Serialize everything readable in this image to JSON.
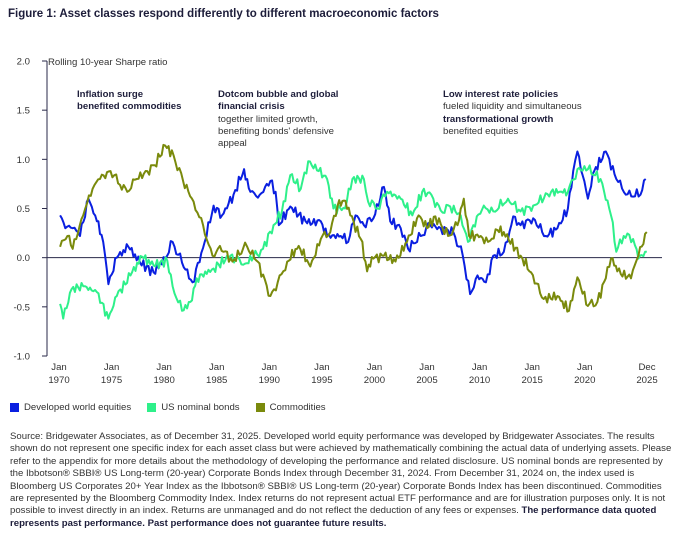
{
  "title": "Figure 1: Asset classes respond differently to different macroeconomic factors",
  "chart_data": {
    "type": "line",
    "title": "Figure 1: Asset classes respond differently to different macroeconomic factors",
    "ylabel": "Rolling 10-year Sharpe ratio",
    "ylim": [
      -1.0,
      2.0
    ],
    "yticks": [
      "2.0",
      "1.5",
      "1.0",
      "0.5",
      "0.0",
      "-0.5",
      "-1.0"
    ],
    "xlim": [
      1970,
      2026
    ],
    "xticks": [
      {
        "year": 1970,
        "top": "Jan",
        "bottom": "1970"
      },
      {
        "year": 1975,
        "top": "Jan",
        "bottom": "1975"
      },
      {
        "year": 1980,
        "top": "Jan",
        "bottom": "1980"
      },
      {
        "year": 1985,
        "top": "Jan",
        "bottom": "1985"
      },
      {
        "year": 1990,
        "top": "Jan",
        "bottom": "1990"
      },
      {
        "year": 1995,
        "top": "Jan",
        "bottom": "1995"
      },
      {
        "year": 2000,
        "top": "Jan",
        "bottom": "2000"
      },
      {
        "year": 2005,
        "top": "Jan",
        "bottom": "2005"
      },
      {
        "year": 2010,
        "top": "Jan",
        "bottom": "2010"
      },
      {
        "year": 2015,
        "top": "Jan",
        "bottom": "2015"
      },
      {
        "year": 2020,
        "top": "Jan",
        "bottom": "2020"
      },
      {
        "year": 2025.92,
        "top": "Dec",
        "bottom": "2025"
      }
    ],
    "grid": false,
    "legend_placement": "bottom-left",
    "series": [
      {
        "name": "Developed world equities",
        "color": "#0a1fe0",
        "points": [
          [
            1970.1,
            0.43
          ],
          [
            1970.6,
            0.3
          ],
          [
            1971.3,
            0.3
          ],
          [
            1972.0,
            0.22
          ],
          [
            1972.8,
            0.6
          ],
          [
            1973.6,
            0.37
          ],
          [
            1974.2,
            0.16
          ],
          [
            1974.7,
            -0.27
          ],
          [
            1975.5,
            0.0
          ],
          [
            1976.6,
            0.11
          ],
          [
            1977.7,
            -0.05
          ],
          [
            1979.0,
            -0.15
          ],
          [
            1980.1,
            0.0
          ],
          [
            1980.8,
            0.16
          ],
          [
            1981.7,
            -0.05
          ],
          [
            1982.7,
            -0.25
          ],
          [
            1983.7,
            0.1
          ],
          [
            1984.7,
            0.53
          ],
          [
            1985.5,
            0.43
          ],
          [
            1986.6,
            0.64
          ],
          [
            1987.6,
            0.9
          ],
          [
            1988.2,
            0.67
          ],
          [
            1989.1,
            0.64
          ],
          [
            1990.1,
            0.78
          ],
          [
            1990.6,
            0.67
          ],
          [
            1990.9,
            0.33
          ],
          [
            1992.0,
            0.52
          ],
          [
            1993.6,
            0.35
          ],
          [
            1994.9,
            0.37
          ],
          [
            1995.5,
            0.22
          ],
          [
            1996.8,
            0.22
          ],
          [
            1997.5,
            0.16
          ],
          [
            1998.2,
            0.43
          ],
          [
            1999.0,
            0.33
          ],
          [
            1999.9,
            0.4
          ],
          [
            2000.9,
            0.72
          ],
          [
            2001.5,
            0.37
          ],
          [
            2002.5,
            0.3
          ],
          [
            2003.2,
            0.09
          ],
          [
            2004.4,
            0.22
          ],
          [
            2005.3,
            0.33
          ],
          [
            2006.3,
            0.3
          ],
          [
            2007.5,
            0.26
          ],
          [
            2008.4,
            0.02
          ],
          [
            2009.1,
            -0.37
          ],
          [
            2009.8,
            -0.18
          ],
          [
            2010.6,
            -0.25
          ],
          [
            2011.3,
            0.02
          ],
          [
            2012.3,
            0.06
          ],
          [
            2013.2,
            0.42
          ],
          [
            2013.9,
            0.33
          ],
          [
            2015.1,
            0.4
          ],
          [
            2016.3,
            0.22
          ],
          [
            2017.4,
            0.3
          ],
          [
            2018.4,
            0.5
          ],
          [
            2018.9,
            0.88
          ],
          [
            2019.3,
            1.08
          ],
          [
            2020.3,
            0.6
          ],
          [
            2020.9,
            0.88
          ],
          [
            2022.0,
            1.08
          ],
          [
            2023.0,
            0.8
          ],
          [
            2023.9,
            0.64
          ],
          [
            2025.3,
            0.64
          ],
          [
            2025.8,
            0.8
          ]
        ]
      },
      {
        "name": "US nominal bonds",
        "color": "#2ef08a",
        "points": [
          [
            1970.1,
            -0.47
          ],
          [
            1970.4,
            -0.62
          ],
          [
            1971.2,
            -0.32
          ],
          [
            1972.3,
            -0.29
          ],
          [
            1973.6,
            -0.35
          ],
          [
            1974.7,
            -0.62
          ],
          [
            1975.5,
            -0.39
          ],
          [
            1976.8,
            -0.18
          ],
          [
            1977.9,
            0.01
          ],
          [
            1979.0,
            -0.08
          ],
          [
            1980.3,
            -0.03
          ],
          [
            1980.8,
            -0.29
          ],
          [
            1981.7,
            -0.54
          ],
          [
            1982.5,
            -0.45
          ],
          [
            1983.1,
            -0.21
          ],
          [
            1984.7,
            -0.11
          ],
          [
            1986.3,
            0.02
          ],
          [
            1987.7,
            -0.06
          ],
          [
            1988.5,
            0.01
          ],
          [
            1989.4,
            0.09
          ],
          [
            1990.4,
            0.33
          ],
          [
            1991.2,
            0.47
          ],
          [
            1992.0,
            0.84
          ],
          [
            1993.0,
            0.7
          ],
          [
            1993.7,
            0.98
          ],
          [
            1994.7,
            0.88
          ],
          [
            1995.5,
            0.8
          ],
          [
            1996.1,
            0.5
          ],
          [
            1997.2,
            0.5
          ],
          [
            1997.9,
            0.8
          ],
          [
            1999.0,
            0.8
          ],
          [
            1999.4,
            0.57
          ],
          [
            2000.3,
            0.5
          ],
          [
            2001.2,
            0.67
          ],
          [
            2002.5,
            0.6
          ],
          [
            2003.6,
            0.43
          ],
          [
            2004.7,
            0.7
          ],
          [
            2005.6,
            0.6
          ],
          [
            2006.3,
            0.48
          ],
          [
            2007.2,
            0.52
          ],
          [
            2008.2,
            0.43
          ],
          [
            2008.9,
            0.16
          ],
          [
            2009.4,
            0.33
          ],
          [
            2010.4,
            0.53
          ],
          [
            2011.3,
            0.47
          ],
          [
            2012.7,
            0.6
          ],
          [
            2013.9,
            0.47
          ],
          [
            2015.1,
            0.53
          ],
          [
            2016.8,
            0.67
          ],
          [
            2018.4,
            0.67
          ],
          [
            2019.3,
            0.9
          ],
          [
            2020.3,
            0.9
          ],
          [
            2021.5,
            0.8
          ],
          [
            2022.5,
            0.43
          ],
          [
            2023.0,
            0.06
          ],
          [
            2023.7,
            0.22
          ],
          [
            2024.6,
            0.19
          ],
          [
            2025.1,
            -0.01
          ],
          [
            2025.9,
            0.06
          ]
        ]
      },
      {
        "name": "Commodities",
        "color": "#7a8a0c",
        "points": [
          [
            1970.1,
            0.11
          ],
          [
            1970.8,
            0.22
          ],
          [
            1971.3,
            0.09
          ],
          [
            1972.3,
            0.43
          ],
          [
            1973.2,
            0.7
          ],
          [
            1973.9,
            0.8
          ],
          [
            1974.9,
            0.88
          ],
          [
            1975.8,
            0.74
          ],
          [
            1976.5,
            0.67
          ],
          [
            1977.4,
            0.8
          ],
          [
            1978.4,
            0.88
          ],
          [
            1979.1,
            0.94
          ],
          [
            1980.1,
            1.14
          ],
          [
            1980.9,
            1.04
          ],
          [
            1981.8,
            0.78
          ],
          [
            1982.8,
            0.57
          ],
          [
            1983.7,
            0.33
          ],
          [
            1984.6,
            0.02
          ],
          [
            1985.3,
            0.12
          ],
          [
            1986.5,
            -0.04
          ],
          [
            1987.5,
            0.09
          ],
          [
            1987.9,
            0.11
          ],
          [
            1988.9,
            -0.04
          ],
          [
            1990.1,
            -0.39
          ],
          [
            1990.8,
            -0.25
          ],
          [
            1991.7,
            -0.04
          ],
          [
            1992.8,
            0.12
          ],
          [
            1993.9,
            -0.09
          ],
          [
            1994.9,
            0.19
          ],
          [
            1995.8,
            0.26
          ],
          [
            1996.5,
            0.53
          ],
          [
            1997.1,
            0.58
          ],
          [
            1997.7,
            0.43
          ],
          [
            1998.7,
            0.19
          ],
          [
            1999.3,
            -0.14
          ],
          [
            1999.9,
            -0.01
          ],
          [
            2000.9,
            0.02
          ],
          [
            2002.0,
            -0.04
          ],
          [
            2003.1,
            0.16
          ],
          [
            2004.2,
            0.43
          ],
          [
            2005.0,
            0.3
          ],
          [
            2005.8,
            0.42
          ],
          [
            2007.0,
            0.22
          ],
          [
            2007.9,
            0.33
          ],
          [
            2008.5,
            0.6
          ],
          [
            2009.0,
            0.22
          ],
          [
            2010.1,
            0.22
          ],
          [
            2010.8,
            0.16
          ],
          [
            2011.7,
            0.28
          ],
          [
            2012.3,
            0.26
          ],
          [
            2013.9,
            0.02
          ],
          [
            2014.9,
            -0.15
          ],
          [
            2016.1,
            -0.42
          ],
          [
            2017.4,
            -0.39
          ],
          [
            2018.5,
            -0.54
          ],
          [
            2019.3,
            -0.2
          ],
          [
            2020.3,
            -0.49
          ],
          [
            2021.2,
            -0.45
          ],
          [
            2022.0,
            -0.21
          ],
          [
            2022.5,
            -0.01
          ],
          [
            2023.1,
            -0.14
          ],
          [
            2024.4,
            -0.21
          ],
          [
            2025.1,
            0.02
          ],
          [
            2025.9,
            0.26
          ]
        ]
      }
    ]
  },
  "annotations": [
    {
      "bold": "Inflation surge benefited commodities",
      "text": ""
    },
    {
      "bold": "Dotcom bubble and global financial crisis",
      "text": "together limited growth, benefiting bonds' defensive appeal"
    },
    {
      "bold": "Low interest rate policies",
      "text1": "fueled liquidity and simultaneous",
      "bold2": "transformational growth",
      "text2": "benefited equities"
    }
  ],
  "legend": [
    {
      "label": "Developed world equities",
      "color": "#0a1fe0"
    },
    {
      "label": "US nominal bonds",
      "color": "#2ef08a"
    },
    {
      "label": "Commodities",
      "color": "#7a8a0c"
    }
  ],
  "source": {
    "text": "Source: Bridgewater Associates, as of December 31, 2025. Developed world equity performance was developed by Bridgewater Associates. The results shown do not represent one specific index for each asset class but were achieved by mathematically combining the actual data of underlying assets. Please refer to the appendix for more details about the methodology of developing the performance and related disclosure. US nominal bonds are represented by the Ibbotson® SBBI® US Long-term (20-year) Corporate Bonds Index through December 31, 2024. From December 31, 2024 on, the index used is Bloomberg US Corporates 20+ Year Index as the Ibbotson® SBBI® US Long-term (20-year) Corporate Bonds Index has been discontinued. Commodities are represented by the Bloomberg Commodity Index. Index returns do not represent actual ETF performance and are for illustration purposes only. It is not possible to invest directly in an index. Returns are unmanaged and do not reflect the deduction of any fees or expenses. ",
    "bold": "The performance data quoted represents past performance. Past performance does not guarantee future results."
  }
}
